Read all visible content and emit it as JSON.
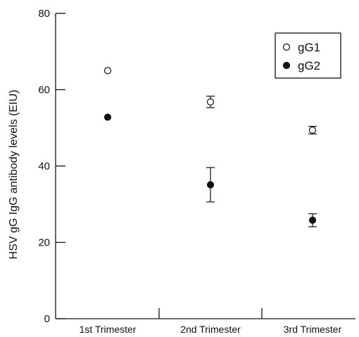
{
  "chart_data": {
    "type": "scatter",
    "ylabel": "HSV gG IgG antibody levels (EIU)",
    "ylim": [
      0,
      80
    ],
    "yticks": [
      0,
      20,
      40,
      60,
      80
    ],
    "categories": [
      "1st Trimester",
      "2nd Trimester",
      "3rd Trimester"
    ],
    "series": [
      {
        "name": "gG1",
        "marker": "open-circle",
        "values": [
          65,
          56.8,
          49.4
        ],
        "error": [
          null,
          1.5,
          1.0
        ]
      },
      {
        "name": "gG2",
        "marker": "filled-circle",
        "values": [
          52.8,
          35.1,
          25.8
        ],
        "error": [
          null,
          4.5,
          1.7
        ]
      }
    ],
    "legend": {
      "position": "top-right"
    },
    "grid": false
  }
}
